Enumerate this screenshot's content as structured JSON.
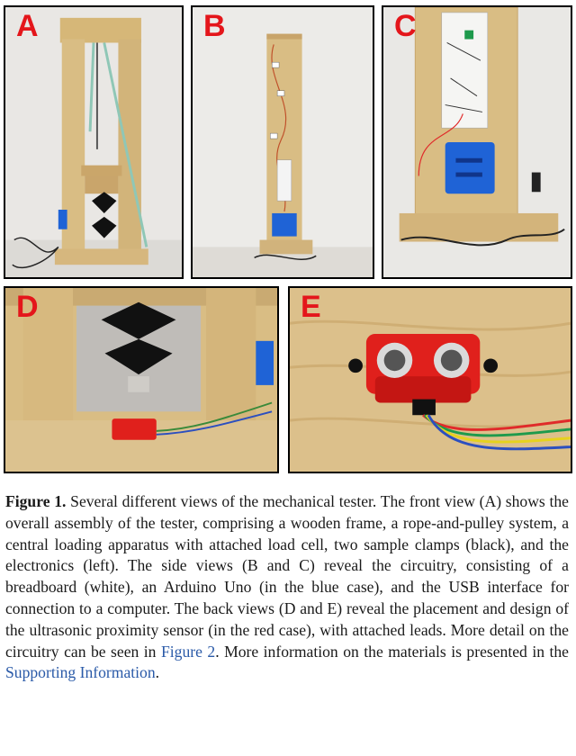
{
  "panels": [
    {
      "id": "A",
      "letter": "A"
    },
    {
      "id": "B",
      "letter": "B"
    },
    {
      "id": "C",
      "letter": "C"
    },
    {
      "id": "D",
      "letter": "D"
    },
    {
      "id": "E",
      "letter": "E"
    }
  ],
  "caption": {
    "label": "Figure 1.",
    "text_1": " Several different views of the mechanical tester. The front view (A) shows the overall assembly of the tester, comprising a wooden frame, a rope-and-pulley system, a central loading apparatus with attached load cell, two sample clamps (black), and the electronics (left). The side views (B and C) reveal the circuitry, consisting of a breadboard (white), an Arduino Uno (in the blue case), and the USB interface for connection to a computer. The back views (D and E) reveal the placement and design of the ultrasonic proximity sensor (in the red case), with attached leads. More detail on the circuitry can be seen in ",
    "link_1": "Figure 2",
    "text_2": ". More information on the materials is presented in the ",
    "link_2": "Supporting Information",
    "text_3": "."
  },
  "colors": {
    "panel_letter": "#e4161b",
    "link": "#2a5aa8",
    "wood": "#d9bd84",
    "arduino_case": "#1f63d6",
    "sensor_case": "#e0201c",
    "clamp": "#111111"
  }
}
